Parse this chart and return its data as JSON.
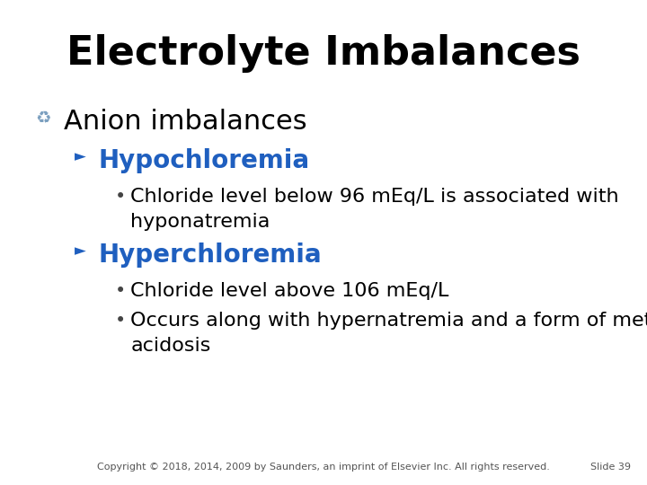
{
  "title": "Electrolyte Imbalances",
  "title_fontsize": 32,
  "title_color": "#000000",
  "background_color": "#ffffff",
  "level1_text": "Anion imbalances",
  "level1_color": "#000000",
  "level1_fontsize": 22,
  "level1_bullet_color": "#7B9FBF",
  "level2_color": "#1F5FBF",
  "level2_fontsize": 20,
  "level3_color": "#000000",
  "level3_fontsize": 16,
  "items": [
    {
      "text": "Hypochloremia",
      "subitems": [
        "Chloride level below 96 mEq/L is associated with\nhyponatremia"
      ]
    },
    {
      "text": "Hyperchloremia",
      "subitems": [
        "Chloride level above 106 mEq/L",
        "Occurs along with hypernatremia and a form of metabolic\nacidosis"
      ]
    }
  ],
  "footer": "Copyright © 2018, 2014, 2009 by Saunders, an imprint of Elsevier Inc. All rights reserved.",
  "footer_right": "Slide 39",
  "footer_fontsize": 8,
  "footer_color": "#555555"
}
